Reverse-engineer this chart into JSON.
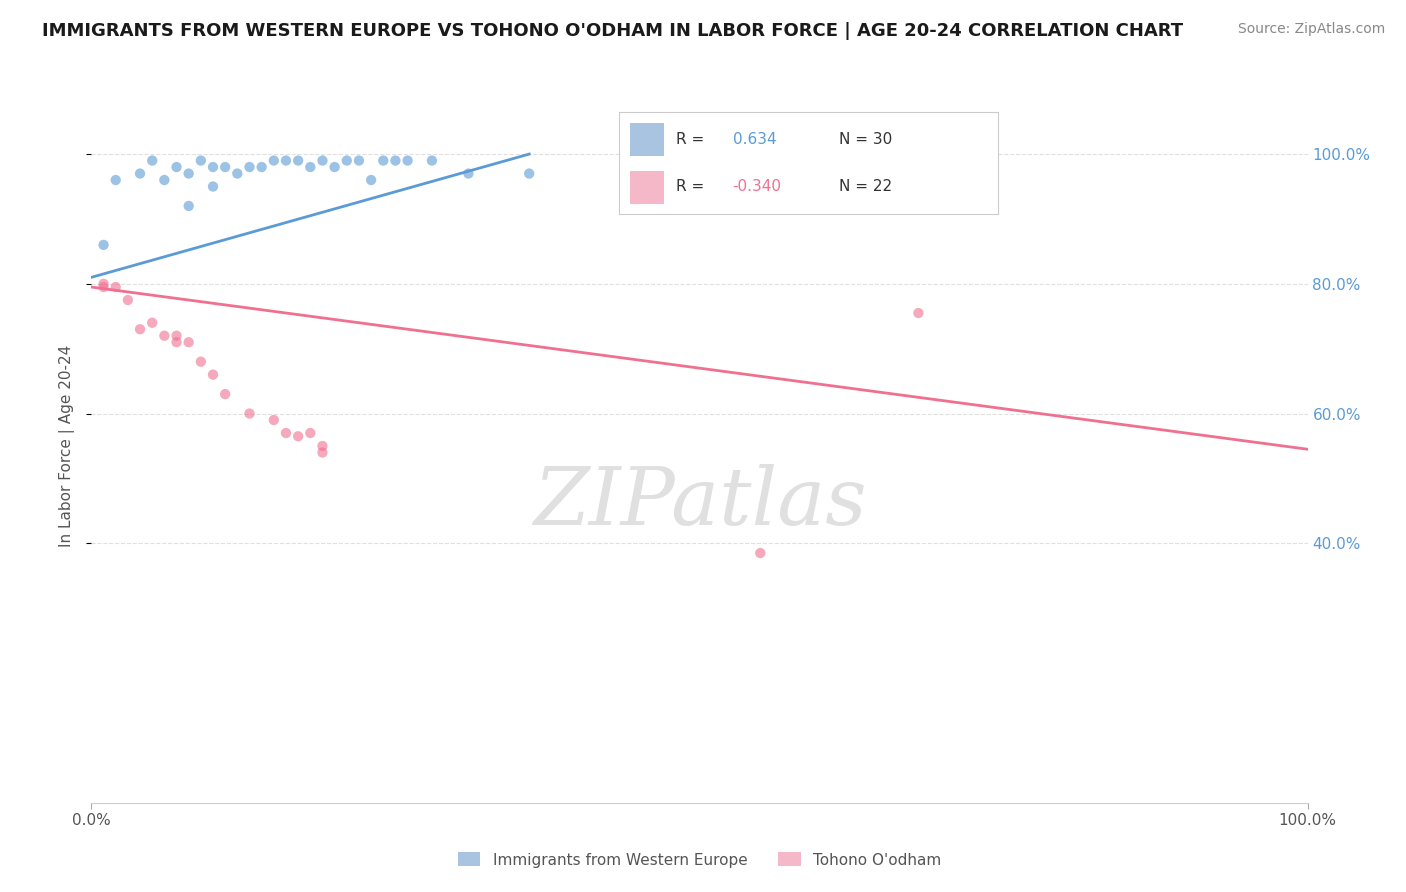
{
  "title": "IMMIGRANTS FROM WESTERN EUROPE VS TOHONO O'ODHAM IN LABOR FORCE | AGE 20-24 CORRELATION CHART",
  "source": "Source: ZipAtlas.com",
  "ylabel": "In Labor Force | Age 20-24",
  "xlim": [
    0.0,
    1.0
  ],
  "ylim": [
    0.0,
    1.1
  ],
  "y_tick_values_right": [
    0.4,
    0.6,
    0.8,
    1.0
  ],
  "legend_color1": "#a8c4e0",
  "legend_color2": "#f4b8c8",
  "blue_color": "#5b9bd5",
  "pink_color": "#f07090",
  "watermark": "ZIPatlas",
  "blue_scatter_x": [
    0.01,
    0.02,
    0.04,
    0.05,
    0.06,
    0.07,
    0.08,
    0.08,
    0.09,
    0.1,
    0.1,
    0.11,
    0.12,
    0.13,
    0.14,
    0.15,
    0.16,
    0.17,
    0.18,
    0.19,
    0.2,
    0.21,
    0.22,
    0.23,
    0.24,
    0.25,
    0.26,
    0.28,
    0.31,
    0.36
  ],
  "blue_scatter_y": [
    0.86,
    0.96,
    0.97,
    0.99,
    0.96,
    0.98,
    0.97,
    0.92,
    0.99,
    0.95,
    0.98,
    0.98,
    0.97,
    0.98,
    0.98,
    0.99,
    0.99,
    0.99,
    0.98,
    0.99,
    0.98,
    0.99,
    0.99,
    0.96,
    0.99,
    0.99,
    0.99,
    0.99,
    0.97,
    0.97
  ],
  "blue_line_x": [
    0.0,
    0.36
  ],
  "blue_line_y": [
    0.81,
    1.0
  ],
  "pink_scatter_x": [
    0.01,
    0.01,
    0.02,
    0.03,
    0.04,
    0.05,
    0.06,
    0.07,
    0.07,
    0.08,
    0.09,
    0.1,
    0.11,
    0.13,
    0.15,
    0.16,
    0.17,
    0.18,
    0.19,
    0.19,
    0.55,
    0.68
  ],
  "pink_scatter_y": [
    0.795,
    0.8,
    0.795,
    0.775,
    0.73,
    0.74,
    0.72,
    0.71,
    0.72,
    0.71,
    0.68,
    0.66,
    0.63,
    0.6,
    0.59,
    0.57,
    0.565,
    0.57,
    0.55,
    0.54,
    0.385,
    0.755
  ],
  "pink_line_x": [
    0.0,
    1.0
  ],
  "pink_line_y": [
    0.795,
    0.545
  ],
  "dot_size_blue": 55,
  "dot_size_pink": 55,
  "legend_label1": "Immigrants from Western Europe",
  "legend_label2": "Tohono O'odham",
  "bg_color": "#ffffff",
  "grid_color": "#e0e0e0"
}
